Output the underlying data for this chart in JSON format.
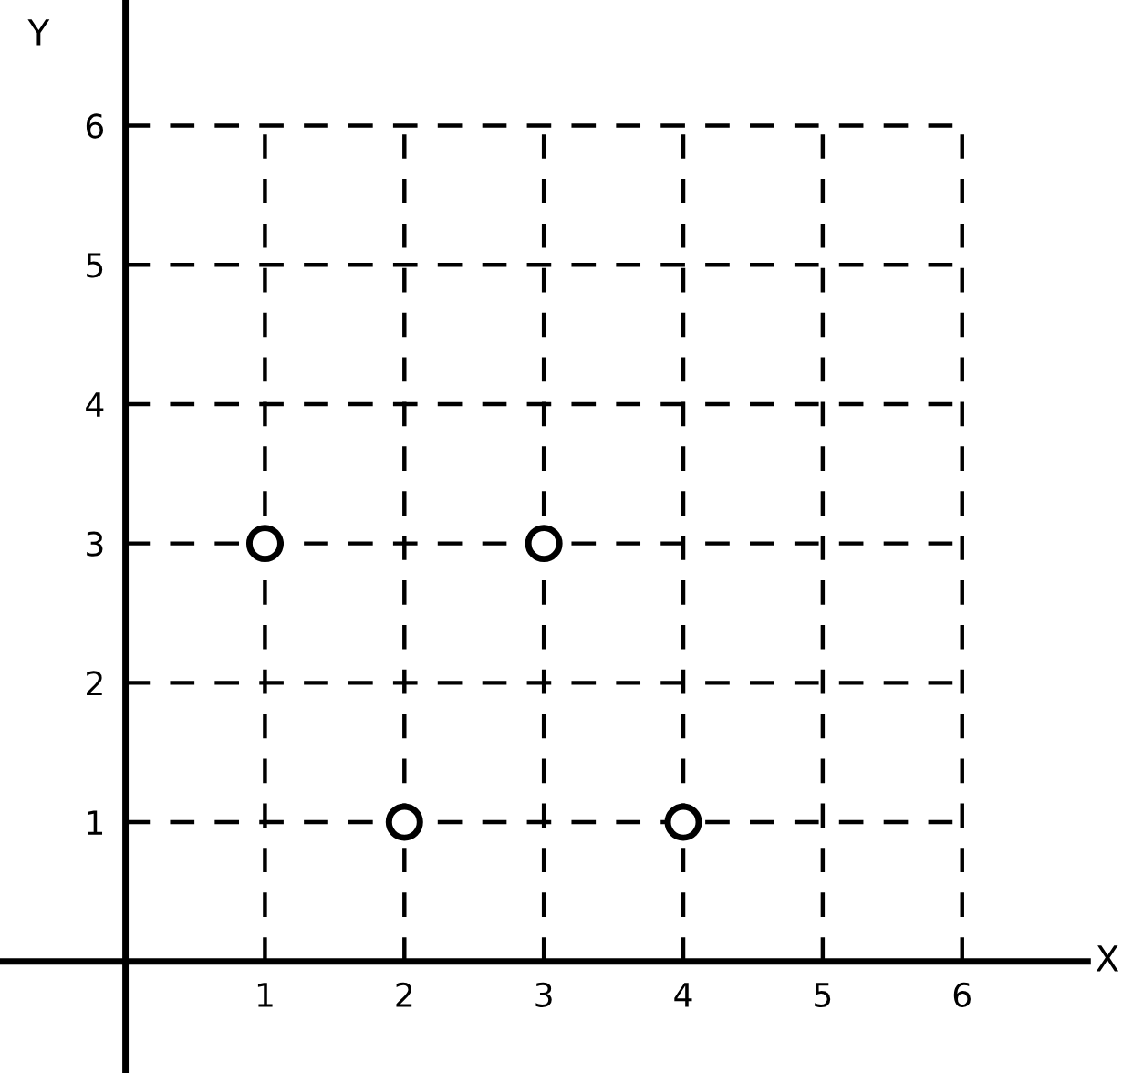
{
  "chart_data": {
    "type": "scatter",
    "xlabel": "X",
    "ylabel": "Y",
    "x": [
      1,
      3,
      2,
      4
    ],
    "values": [
      3,
      3,
      1,
      1
    ],
    "color": "#000000",
    "marker": "circle",
    "xlim": [
      -0.9,
      6.9
    ],
    "ylim": [
      -0.8,
      6.9
    ],
    "xticks": [
      1,
      2,
      3,
      4,
      5,
      6
    ],
    "yticks": [
      1,
      2,
      3,
      4,
      5,
      6
    ],
    "grid": true,
    "legend": false
  }
}
